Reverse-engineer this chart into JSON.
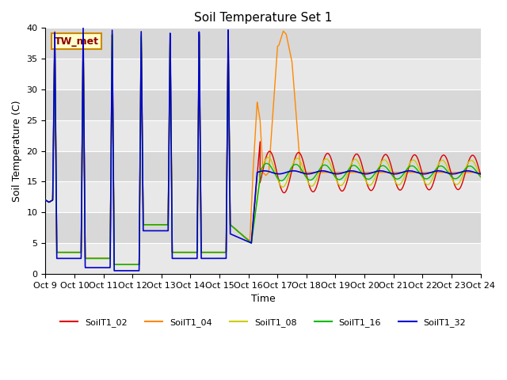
{
  "title": "Soil Temperature Set 1",
  "xlabel": "Time",
  "ylabel": "Soil Temperature (C)",
  "ylim": [
    0,
    40
  ],
  "facecolor_light": "#e8e8e8",
  "facecolor_dark": "#d8d8d8",
  "grid_color": "#ffffff",
  "series_colors": {
    "SoilT1_02": "#dd0000",
    "SoilT1_04": "#ff8800",
    "SoilT1_08": "#cccc00",
    "SoilT1_16": "#00bb00",
    "SoilT1_32": "#0000cc"
  },
  "annotation_label": "TW_met",
  "annotation_bg": "#ffffcc",
  "annotation_border": "#cc8800",
  "x_tick_labels": [
    "Oct 9",
    "Oct 10",
    "Oct 11",
    "Oct 12",
    "Oct 13",
    "Oct 14",
    "Oct 15",
    "Oct 16",
    "Oct 17",
    "Oct 18",
    "Oct 19",
    "Oct 20",
    "Oct 21",
    "Oct 22",
    "Oct 23",
    "Oct 24"
  ],
  "yticks": [
    0,
    5,
    10,
    15,
    20,
    25,
    30,
    35,
    40
  ]
}
